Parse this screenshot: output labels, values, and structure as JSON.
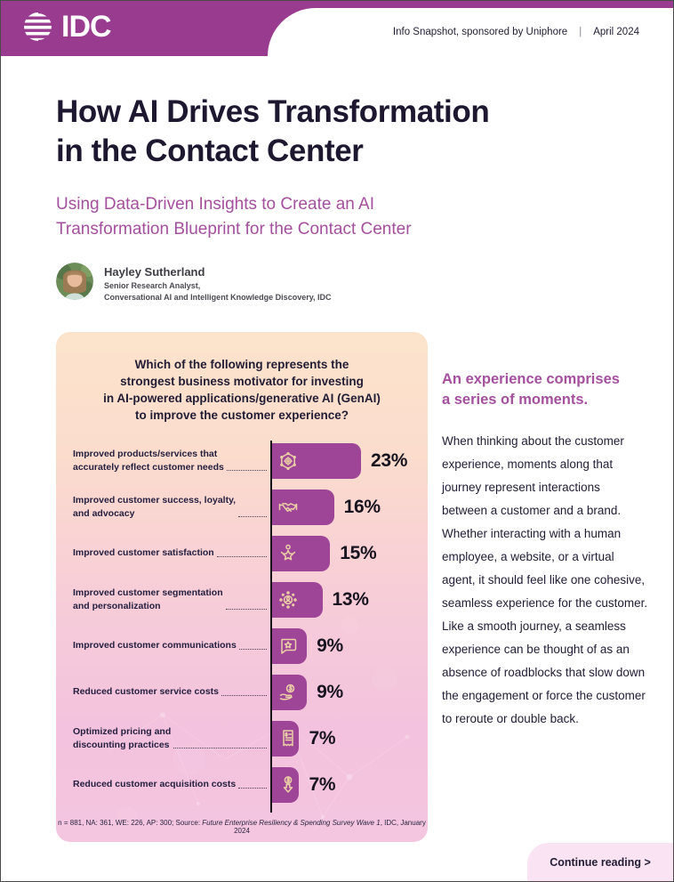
{
  "header": {
    "logo_text": "IDC",
    "meta": "Info Snapshot, sponsored by Uniphore",
    "separator": "|",
    "date": "April 2024"
  },
  "title": "How AI Drives Transformation\nin the Contact Center",
  "subtitle": "Using Data-Driven Insights to Create an AI\nTransformation Blueprint for the Contact Center",
  "author": {
    "name": "Hayley Sutherland",
    "role_line1": "Senior Research Analyst,",
    "role_line2": "Conversational AI and Intelligent Knowledge Discovery, IDC"
  },
  "chart_data": {
    "type": "bar",
    "orientation": "horizontal",
    "title": "Which of the following represents the\nstrongest business motivator for investing\nin AI-powered applications/generative AI (GenAI)\nto improve the customer experience?",
    "unit": "%",
    "xlim": [
      0,
      25
    ],
    "bar_color": "#9e4598",
    "categories": [
      "Improved products/services that accurately reflect customer needs",
      "Improved customer success, loyalty, and advocacy",
      "Improved customer satisfaction",
      "Improved customer segmentation and personalization",
      "Improved customer communications",
      "Reduced customer service costs",
      "Optimized pricing and discounting practices",
      "Reduced customer acquisition costs"
    ],
    "values": [
      23,
      16,
      15,
      13,
      9,
      9,
      7,
      7
    ],
    "rows": [
      {
        "label": "Improved products/services that\naccurately reflect customer needs",
        "value": 23,
        "display": "23%",
        "icon": "ai-network-icon"
      },
      {
        "label": "Improved customer success, loyalty,\nand advocacy",
        "value": 16,
        "display": "16%",
        "icon": "handshake-icon"
      },
      {
        "label": "Improved customer satisfaction",
        "value": 15,
        "display": "15%",
        "icon": "satisfaction-star-icon"
      },
      {
        "label": "Improved customer segmentation\nand personalization",
        "value": 13,
        "display": "13%",
        "icon": "segmentation-icon"
      },
      {
        "label": "Improved customer communications",
        "value": 9,
        "display": "9%",
        "icon": "communication-bubble-icon"
      },
      {
        "label": "Reduced customer service costs",
        "value": 9,
        "display": "9%",
        "icon": "hand-coin-icon"
      },
      {
        "label": "Optimized pricing and\ndiscounting practices",
        "value": 7,
        "display": "7%",
        "icon": "receipt-icon"
      },
      {
        "label": "Reduced customer acquisition costs",
        "value": 7,
        "display": "7%",
        "icon": "dollar-down-arrow-icon"
      }
    ],
    "footnote_prefix": "n = 881, NA: 361, WE: 226, AP: 300; Source: ",
    "footnote_source": "Future Enterprise Resiliency & Spending Survey Wave 1",
    "footnote_suffix": ", IDC, January 2024"
  },
  "sidebar": {
    "heading": "An experience comprises\na series of moments.",
    "body": "When thinking about the customer experience, moments along that journey represent interactions between a customer and a brand. Whether interacting with a human employee, a website, or a virtual agent, it should feel like one cohesive, seamless experience for the customer. Like a smooth journey, a seamless experience can be thought of as an absence of roadblocks that slow down the engagement or force the customer to reroute or double back.",
    "heading_color": "#a4509e"
  },
  "footer": {
    "continue_label": "Continue reading >"
  },
  "colors": {
    "header_purple": "#993b8e",
    "bar_purple": "#9e4598",
    "accent_purple": "#a4509e",
    "panel_gradient_top": "#fce4cc",
    "panel_gradient_bottom": "#f4c6e0",
    "icon_stroke": "#ecd0a5",
    "continue_bg": "#fae3f2",
    "text_dark": "#221d35"
  }
}
